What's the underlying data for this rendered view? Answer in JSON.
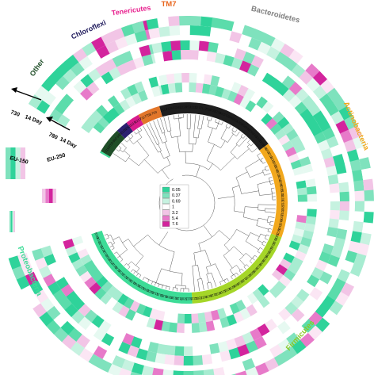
{
  "phyla": [
    {
      "name": "Bacteroidetes",
      "color": "#808080"
    },
    {
      "name": "Actinobacteria",
      "color": "#f2a81d"
    },
    {
      "name": "Firmicutes",
      "color": "#8ac926"
    },
    {
      "name": "Proteobacteria",
      "color": "#3ddc97"
    },
    {
      "name": "Other",
      "color": "#1f4e28"
    },
    {
      "name": "Chloroflexi",
      "color": "#1f1a5c"
    },
    {
      "name": "Tenericutes",
      "color": "#e8228f"
    },
    {
      "name": "TM7",
      "color": "#e8661d"
    }
  ],
  "ring_segments": [
    {
      "phylum": "Bacteroidetes",
      "color": "#1e1e1e"
    },
    {
      "phylum": "Actinobacteria",
      "color": "#f2a81d"
    },
    {
      "phylum": "Firmicutes",
      "color": "#a5d628"
    },
    {
      "phylum": "Proteobacteria",
      "color": "#3ddc97"
    },
    {
      "phylum": "Other",
      "color": "#1f4e28"
    },
    {
      "phylum": "Chloroflexi",
      "color": "#2b2070"
    },
    {
      "phylum": "Tenericutes",
      "color": "#d81b8c"
    },
    {
      "phylum": "TM7",
      "color": "#e2762a"
    }
  ],
  "legend": {
    "values": [
      "0.05",
      "0.37",
      "0.69",
      "1",
      "3.2",
      "5.4",
      "7.6"
    ],
    "colors": [
      "#2fd39a",
      "#7fe2bd",
      "#c6f2e0",
      "#ffffff",
      "#f2c5e6",
      "#e77ac9",
      "#d3249d"
    ]
  },
  "labels": {
    "sample_a": "730",
    "sample_b": "780",
    "time": "14 Day",
    "group_outer": "EU-150",
    "group_inner": "EU-250"
  },
  "otu_labels": [
    "7110",
    "753",
    "602",
    "348",
    "1128",
    "253",
    "1115",
    "1217",
    "7117",
    "758",
    "703",
    "1228",
    "682",
    "755",
    "680",
    "701",
    "1209",
    "756",
    "698",
    "759",
    "769",
    "1206",
    "1219",
    "1104",
    "1207",
    "1216",
    "1210",
    "1208",
    "1200",
    "1213",
    "1153",
    "1208",
    "1228",
    "1128",
    "1131",
    "1210",
    "1207",
    "1211",
    "1100",
    "1117",
    "1185",
    "1225",
    "1200",
    "1134",
    "1223",
    "1207",
    "1198",
    "1128",
    "1104",
    "1113",
    "1209",
    "1200",
    "1217",
    "1126",
    "1214",
    "1206",
    "1232",
    "1211",
    "1219",
    "1231",
    "1128",
    "1110",
    "1117",
    "1201",
    "1216",
    "1113",
    "1207",
    "1128",
    "1126",
    "1203",
    "1135",
    "1131",
    "1136",
    "1205",
    "1201",
    "1208",
    "1200",
    "1129",
    "1110",
    "1215",
    "1216",
    "1129",
    "1217",
    "1207",
    "1202",
    "1113",
    "1225",
    "1122",
    "1106",
    "1118"
  ],
  "colors": {
    "legend_bg": "#ffffff",
    "tree_line": "#555555",
    "arrow": "#000000"
  }
}
